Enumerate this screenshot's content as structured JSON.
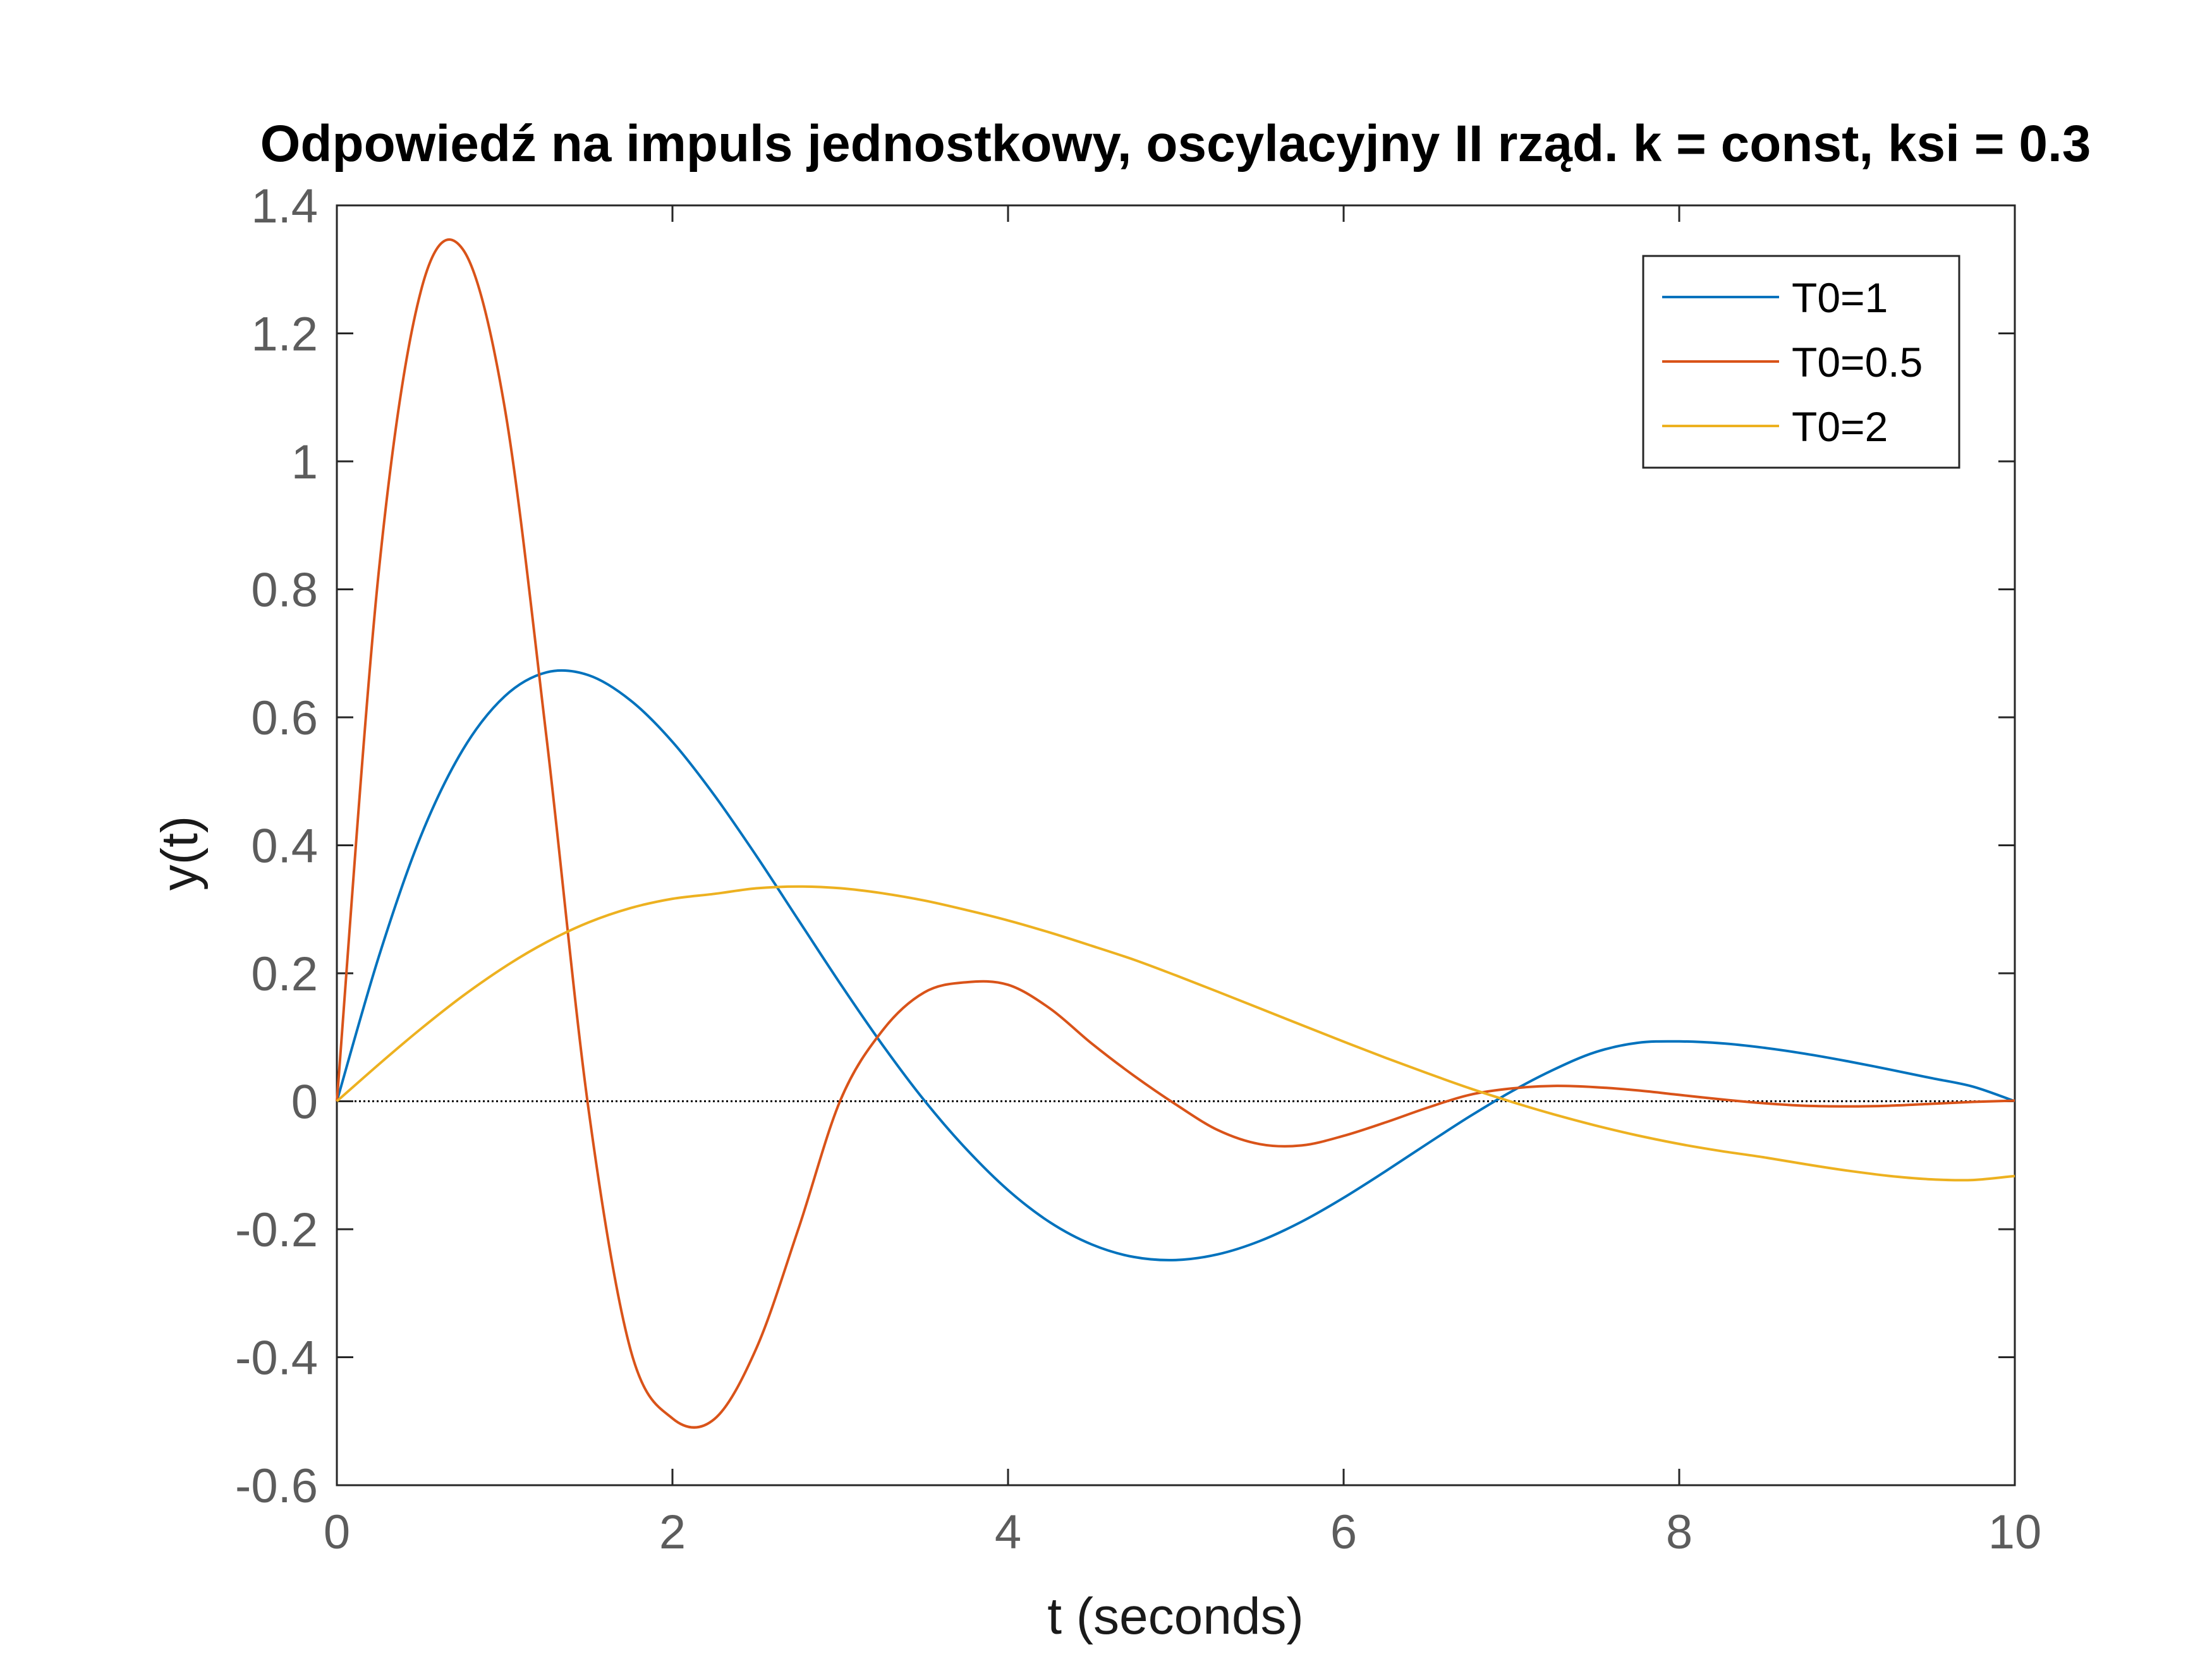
{
  "chart_data": {
    "type": "line",
    "title": "Odpowiedź na impuls jednostkowy, oscylacyjny II rząd. k = const, ksi = 0.3",
    "xlabel": "t (seconds)",
    "ylabel": "y(t)",
    "xlim": [
      0,
      10
    ],
    "ylim": [
      -0.6,
      1.4
    ],
    "xticks": [
      0,
      2,
      4,
      6,
      8,
      10
    ],
    "yticks": [
      -0.6,
      -0.4,
      -0.2,
      0,
      0.2,
      0.4,
      0.6,
      0.8,
      1,
      1.2,
      1.4
    ],
    "xtick_labels": [
      "0",
      "2",
      "4",
      "6",
      "8",
      "10"
    ],
    "ytick_labels": [
      "-0.6",
      "-0.4",
      "-0.2",
      "0",
      "0.2",
      "0.4",
      "0.6",
      "0.8",
      "1",
      "1.2",
      "1.4"
    ],
    "grid": false,
    "legend_position": "top-right",
    "zero_line": {
      "style": "dotted",
      "color": "#000000"
    },
    "x": [
      0,
      0.25,
      0.5,
      0.75,
      1,
      1.25,
      1.5,
      1.75,
      2,
      2.25,
      2.5,
      2.75,
      3,
      3.25,
      3.5,
      3.75,
      4,
      4.25,
      4.5,
      4.75,
      5,
      5.25,
      5.5,
      5.75,
      6,
      6.25,
      6.5,
      6.75,
      7,
      7.25,
      7.5,
      7.75,
      8,
      8.25,
      8.5,
      8.75,
      9,
      9.25,
      9.5,
      9.75,
      10
    ],
    "series": [
      {
        "name": "T0=1",
        "color": "#0072BD",
        "values": [
          0,
          0.2261,
          0.4142,
          0.5489,
          0.6328,
          0.6703,
          0.6658,
          0.6265,
          0.5617,
          0.4781,
          0.3835,
          0.2836,
          0.1838,
          0.0887,
          0.0016,
          -0.0744,
          -0.1389,
          -0.1892,
          -0.2239,
          -0.2434,
          -0.2481,
          -0.2392,
          -0.2185,
          -0.1881,
          -0.1508,
          -0.1093,
          -0.0662,
          -0.0239,
          0.0152,
          0.0492,
          0.0767,
          0.0913,
          0.0935,
          0.0906,
          0.0838,
          0.0743,
          0.0627,
          0.0498,
          0.0363,
          0.0229,
          0
        ]
      },
      {
        "name": "T0=0.5",
        "color": "#D95319",
        "values": [
          0,
          0.8284,
          1.2656,
          1.3317,
          1.0843,
          0.567,
          -0.013,
          -0.388,
          -0.4956,
          -0.4966,
          -0.386,
          -0.2,
          0.001,
          0.11,
          0.17,
          0.186,
          0.182,
          0.145,
          0.09,
          0.04,
          -0.005,
          -0.045,
          -0.067,
          -0.069,
          -0.054,
          -0.033,
          -0.01,
          0.01,
          0.02,
          0.024,
          0.022,
          0.017,
          0.01,
          0.003,
          -0.003,
          -0.007,
          -0.008,
          -0.007,
          -0.004,
          -0.001,
          0.001
        ]
      },
      {
        "name": "T0=2",
        "color": "#EDB120",
        "values": [
          0,
          0.0577,
          0.1131,
          0.1644,
          0.21,
          0.2487,
          0.2795,
          0.3019,
          0.3164,
          0.3241,
          0.3328,
          0.3356,
          0.3329,
          0.3251,
          0.3138,
          0.299,
          0.2826,
          0.2636,
          0.2428,
          0.2212,
          0.1967,
          0.1712,
          0.1452,
          0.1191,
          0.0932,
          0.068,
          0.0437,
          0.0204,
          -0.0008,
          -0.0203,
          -0.0378,
          -0.0533,
          -0.0667,
          -0.0778,
          -0.0874,
          -0.0983,
          -0.1083,
          -0.1166,
          -0.122,
          -0.1231,
          -0.1167
        ]
      }
    ]
  }
}
